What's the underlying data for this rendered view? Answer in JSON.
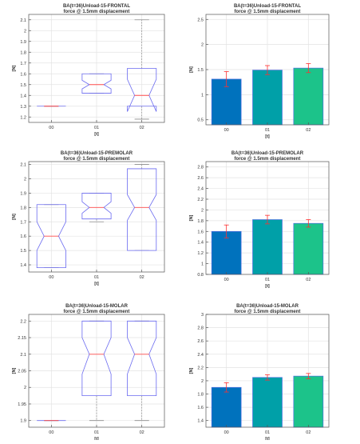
{
  "figure": {
    "xlabel": "[t]",
    "ylabel": "[N]"
  },
  "chart_data": [
    {
      "type": "box",
      "title": "BA(t=36)Unload-15-FRONTAL",
      "subtitle": "force @ 1.5mm displacement",
      "xlabel": "[t]",
      "ylabel": "[N]",
      "categories": [
        "00",
        "01",
        "02"
      ],
      "ylim": [
        1.15,
        2.15
      ],
      "yticks": [
        1.2,
        1.3,
        1.4,
        1.5,
        1.6,
        1.7,
        1.8,
        1.9,
        2,
        2.1
      ],
      "grid": true,
      "boxes": [
        {
          "category": "00",
          "whisker_low": 1.3,
          "q1": 1.3,
          "median": 1.3,
          "q3": 1.3,
          "whisker_high": 1.3,
          "notch_low": 1.3,
          "notch_high": 1.3
        },
        {
          "category": "01",
          "whisker_low": 1.42,
          "q1": 1.42,
          "median": 1.5,
          "q3": 1.6,
          "whisker_high": 1.6,
          "notch_low": 1.46,
          "notch_high": 1.54
        },
        {
          "category": "02",
          "whisker_low": 1.18,
          "q1": 1.3,
          "median": 1.4,
          "q3": 1.65,
          "whisker_high": 2.1,
          "notch_low": 1.25,
          "notch_high": 1.55
        }
      ]
    },
    {
      "type": "bar",
      "title": "BA(t=36)Unload-15-FRONTAL",
      "subtitle": "force @ 1.5mm displacement",
      "xlabel": "[t]",
      "ylabel": "[N]",
      "categories": [
        "00",
        "01",
        "02"
      ],
      "values": [
        1.31,
        1.49,
        1.53
      ],
      "errors": [
        0.15,
        0.09,
        0.09
      ],
      "ylim": [
        0.4,
        2.6
      ],
      "yticks": [
        0.5,
        1,
        1.5,
        2,
        2.5
      ],
      "grid": true
    },
    {
      "type": "box",
      "title": "BA(t=36)Unload-15-PREMOLAR",
      "subtitle": "force @ 1.5mm displacement",
      "xlabel": "[t]",
      "ylabel": "[N]",
      "categories": [
        "00",
        "01",
        "02"
      ],
      "ylim": [
        1.35,
        2.12
      ],
      "yticks": [
        1.4,
        1.5,
        1.6,
        1.7,
        1.8,
        1.9,
        2,
        2.1
      ],
      "grid": true,
      "boxes": [
        {
          "category": "00",
          "whisker_low": 1.38,
          "q1": 1.38,
          "median": 1.6,
          "q3": 1.82,
          "whisker_high": 1.82,
          "notch_low": 1.5,
          "notch_high": 1.7
        },
        {
          "category": "01",
          "whisker_low": 1.7,
          "q1": 1.72,
          "median": 1.8,
          "q3": 1.9,
          "whisker_high": 1.9,
          "notch_low": 1.76,
          "notch_high": 1.84
        },
        {
          "category": "02",
          "whisker_low": 1.5,
          "q1": 1.5,
          "median": 1.8,
          "q3": 2.07,
          "whisker_high": 2.1,
          "notch_low": 1.71,
          "notch_high": 1.89
        }
      ]
    },
    {
      "type": "bar",
      "title": "BA(t=36)Unload-15-PREMOLAR",
      "subtitle": "force @ 1.5mm displacement",
      "xlabel": "[t]",
      "ylabel": "[N]",
      "categories": [
        "00",
        "01",
        "02"
      ],
      "values": [
        1.6,
        1.82,
        1.75
      ],
      "errors": [
        0.12,
        0.08,
        0.07
      ],
      "ylim": [
        0.8,
        2.9
      ],
      "yticks": [
        0.8,
        1,
        1.2,
        1.4,
        1.6,
        1.8,
        2,
        2.2,
        2.4,
        2.6,
        2.8
      ],
      "grid": true
    },
    {
      "type": "box",
      "title": "BA(t=36)Unload-15-MOLAR",
      "subtitle": "force @ 1.5mm displacement",
      "xlabel": "[t]",
      "ylabel": "[N]",
      "categories": [
        "00",
        "01",
        "02"
      ],
      "ylim": [
        1.88,
        2.22
      ],
      "yticks": [
        1.9,
        1.95,
        2,
        2.05,
        2.1,
        2.15,
        2.2
      ],
      "grid": true,
      "boxes": [
        {
          "category": "00",
          "whisker_low": 1.9,
          "q1": 1.9,
          "median": 1.9,
          "q3": 1.9,
          "whisker_high": 1.9,
          "notch_low": 1.9,
          "notch_high": 1.9
        },
        {
          "category": "01",
          "whisker_low": 1.9,
          "q1": 1.975,
          "median": 2.1,
          "q3": 2.2,
          "whisker_high": 2.2,
          "notch_low": 2.04,
          "notch_high": 2.15
        },
        {
          "category": "02",
          "whisker_low": 1.9,
          "q1": 1.975,
          "median": 2.1,
          "q3": 2.2,
          "whisker_high": 2.2,
          "notch_low": 2.04,
          "notch_high": 2.15
        }
      ]
    },
    {
      "type": "bar",
      "title": "BA(t=36)Unload-15-MOLAR",
      "subtitle": "force @ 1.5mm displacement",
      "xlabel": "[t]",
      "ylabel": "[N]",
      "categories": [
        "00",
        "01",
        "02"
      ],
      "values": [
        1.9,
        2.05,
        2.07
      ],
      "errors": [
        0.07,
        0.04,
        0.04
      ],
      "ylim": [
        1.3,
        3.0
      ],
      "yticks": [
        1.4,
        1.6,
        1.8,
        2,
        2.2,
        2.4,
        2.6,
        2.8,
        3
      ],
      "grid": true
    }
  ],
  "colors": {
    "box_line": "#6a6af0",
    "median": "#ff4d4d",
    "whisker": "#8a8a8a",
    "error_bar": "#ff3030",
    "bar_outline": "#4d6fe0",
    "bars": [
      "#0072bd",
      "#00a0a8",
      "#1cc38a"
    ],
    "grid": "#e3e3e3",
    "axis": "#555555",
    "text": "#333333"
  }
}
